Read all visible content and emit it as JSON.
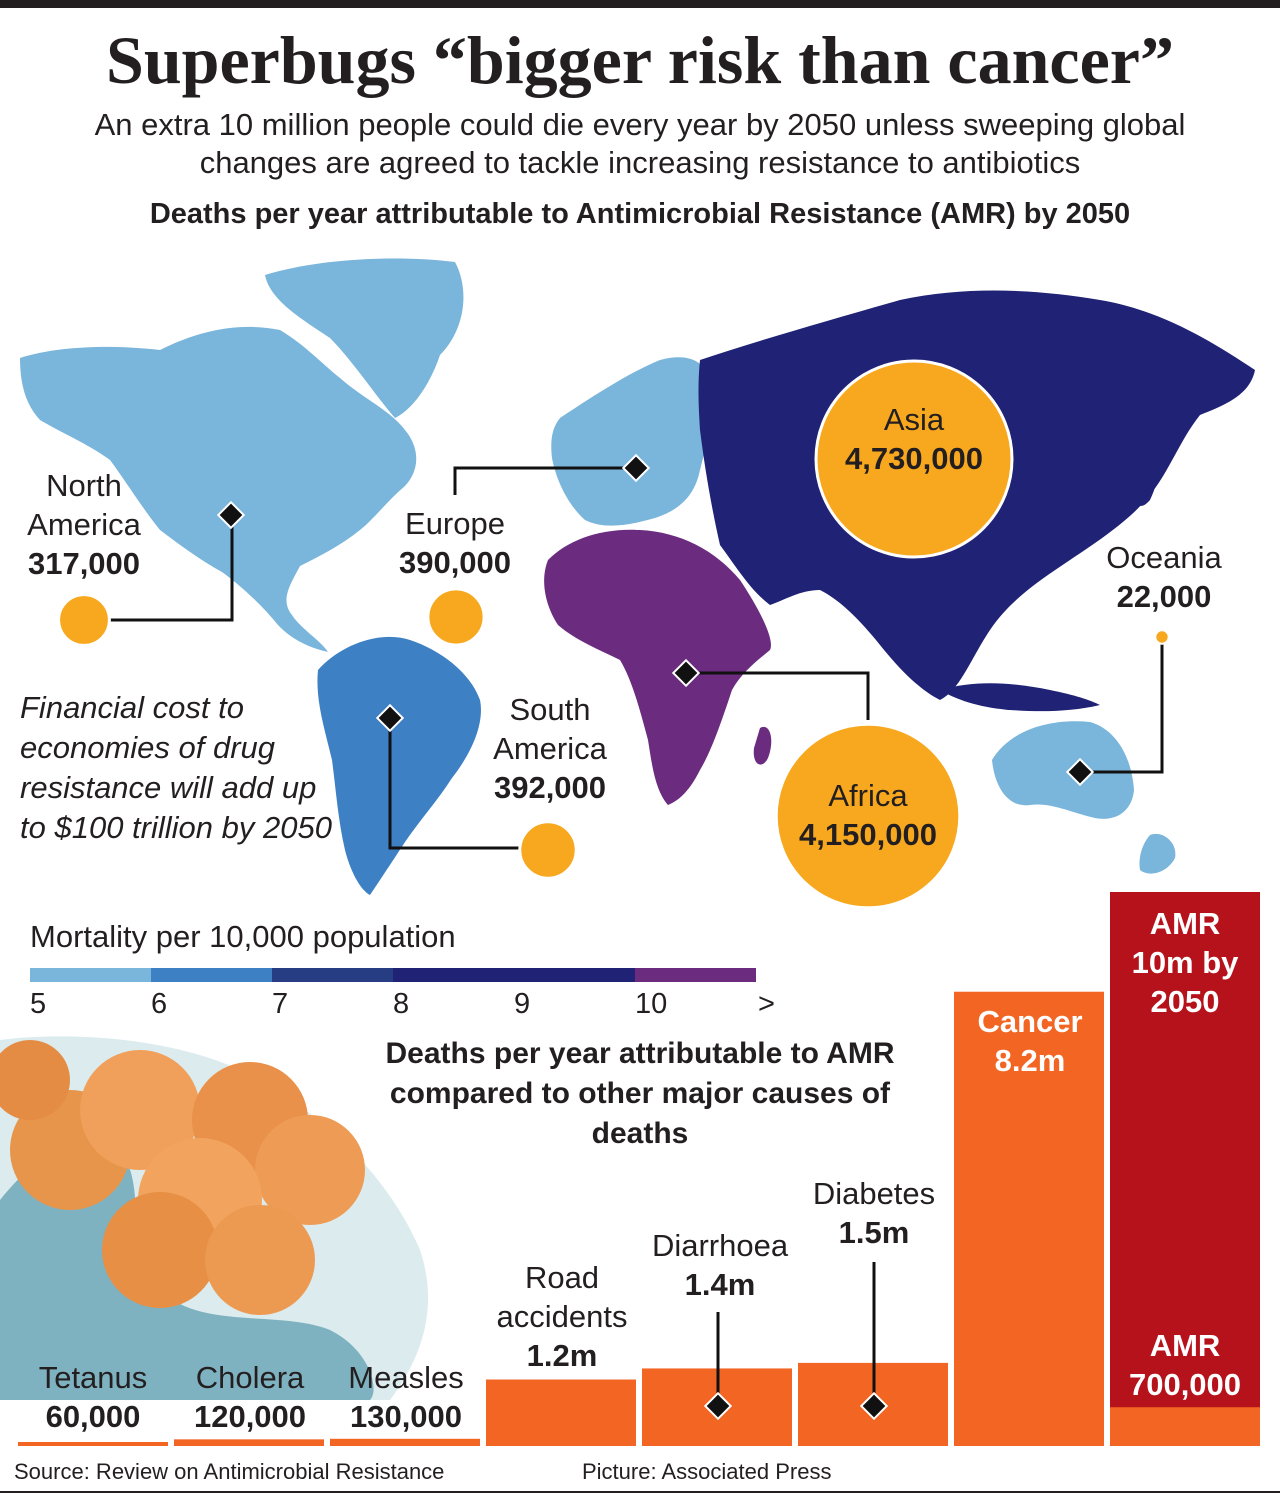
{
  "headline": "Superbugs “bigger risk than cancer”",
  "subhead": "An extra 10 million people could die every year by 2050 unless sweeping global changes are agreed to tackle increasing resistance to antibiotics",
  "map_title": "Deaths per year attributable to Antimicrobial Resistance (AMR) by 2050",
  "regions": {
    "north_america": {
      "name_1": "North",
      "name_2": "America",
      "value": "317,000",
      "deaths": 317000
    },
    "europe": {
      "name": "Europe",
      "value": "390,000",
      "deaths": 390000
    },
    "asia": {
      "name": "Asia",
      "value": "4,730,000",
      "deaths": 4730000
    },
    "oceania": {
      "name": "Oceania",
      "value": "22,000",
      "deaths": 22000
    },
    "south_america": {
      "name_1": "South",
      "name_2": "America",
      "value": "392,000",
      "deaths": 392000
    },
    "africa": {
      "name": "Africa",
      "value": "4,150,000",
      "deaths": 4150000
    }
  },
  "cost_note": "Financial cost to economies of drug resistance will add up to $100 trillion by 2050",
  "legend": {
    "title": "Mortality per 10,000 population",
    "ticks": [
      "5",
      "6",
      "7",
      "8",
      "9",
      "10",
      ">"
    ],
    "colors": [
      "#7ab5db",
      "#3d80c4",
      "#263d84",
      "#1f2275",
      "#1f2275",
      "#6b2c7f"
    ]
  },
  "colors": {
    "light_blue": "#7ab5db",
    "mid_blue": "#3d80c4",
    "navy": "#1f2275",
    "purple": "#6b2c7f",
    "bubble": "#f8a81e",
    "orange": "#f26522",
    "amr_red": "#b5121b"
  },
  "chart_data": {
    "type": "bar",
    "title": "Deaths per year attributable to AMR compared to other major causes of deaths",
    "unit": "deaths per year",
    "categories": [
      "Tetanus",
      "Cholera",
      "Measles",
      "Road accidents",
      "Diarrhoea",
      "Diabetes",
      "Cancer",
      "AMR 10m by 2050"
    ],
    "values": [
      60000,
      120000,
      130000,
      1200000,
      1400000,
      1500000,
      8200000,
      10000000
    ],
    "labels": {
      "tetanus": {
        "name": "Tetanus",
        "value": "60,000"
      },
      "cholera": {
        "name": "Cholera",
        "value": "120,000"
      },
      "measles": {
        "name": "Measles",
        "value": "130,000"
      },
      "road": {
        "name_1": "Road",
        "name_2": "accidents",
        "value": "1.2m"
      },
      "diarrhoea": {
        "name": "Diarrhoea",
        "value": "1.4m"
      },
      "diabetes": {
        "name": "Diabetes",
        "value": "1.5m"
      },
      "cancer": {
        "name": "Cancer",
        "value": "8.2m"
      },
      "amr2050": {
        "line_1": "AMR",
        "line_2": "10m by",
        "line_3": "2050"
      },
      "amr_now": {
        "name": "AMR",
        "value": "700,000"
      }
    },
    "amr_current": 700000
  },
  "source": "Source: Review on Antimicrobial Resistance",
  "credit": "Picture: Associated Press"
}
